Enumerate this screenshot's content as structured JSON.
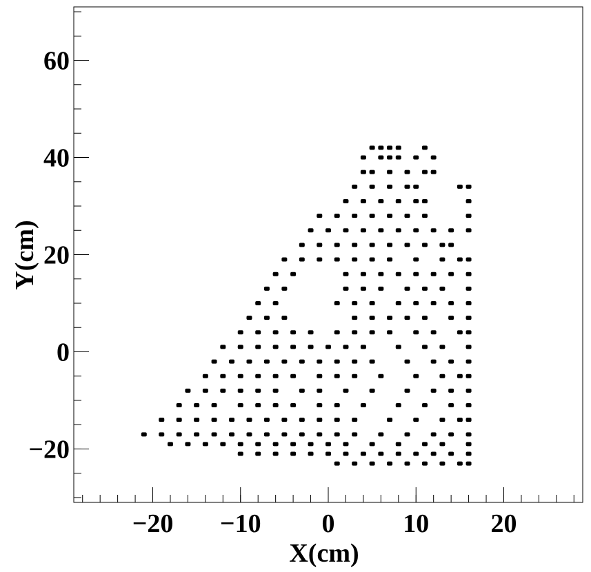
{
  "chart_data": {
    "type": "scatter",
    "xlabel": "X(cm)",
    "ylabel": "Y(cm)",
    "color": "#000000",
    "xlim": [
      -29,
      29
    ],
    "ylim": [
      -31,
      71
    ],
    "xticks": [
      {
        "value": -20,
        "label": "−20"
      },
      {
        "value": -10,
        "label": "−10"
      },
      0,
      10,
      20
    ],
    "yticks": [
      {
        "value": -20,
        "label": "−20"
      },
      0,
      20,
      40,
      60
    ],
    "xminorticks": [
      -28,
      -26,
      -24,
      -22,
      -20,
      -18,
      -16,
      -14,
      -12,
      -10,
      -8,
      -6,
      -4,
      -2,
      0,
      2,
      4,
      6,
      8,
      10,
      12,
      14,
      16,
      18,
      20,
      22,
      24,
      26,
      28
    ],
    "yminorticks": [
      -30,
      -25,
      -20,
      -15,
      -10,
      -5,
      0,
      5,
      10,
      15,
      20,
      25,
      30,
      35,
      40,
      45,
      50,
      55,
      60,
      65,
      70
    ],
    "x": [
      1,
      3,
      5,
      7,
      9,
      11,
      13,
      15,
      16,
      -10,
      -8,
      -6,
      -4,
      -2,
      0,
      2,
      4,
      6,
      8,
      10,
      12,
      14,
      16,
      -18,
      -16,
      -14,
      -12,
      -10,
      -8,
      -6,
      -4,
      -2,
      0,
      2,
      5,
      8,
      11,
      13,
      16,
      -21,
      -19,
      -17,
      -15,
      -13,
      -11,
      -9,
      -7,
      -5,
      -3,
      -1,
      1,
      3,
      6,
      9,
      12,
      14,
      16,
      -19,
      -17,
      -15,
      -13,
      -11,
      -9,
      -7,
      -5,
      -3,
      -1,
      1,
      3,
      7,
      10,
      13,
      15,
      16,
      -17,
      -15,
      -13,
      -10,
      -8,
      -6,
      -4,
      -1,
      1,
      4,
      8,
      11,
      14,
      16,
      -16,
      -14,
      -12,
      -10,
      -8,
      -6,
      -3,
      -1,
      2,
      5,
      9,
      12,
      14,
      16,
      -14,
      -12,
      -10,
      -8,
      -6,
      -4,
      -1,
      1,
      3,
      6,
      10,
      13,
      15,
      16,
      -13,
      -11,
      -9,
      -7,
      -5,
      -3,
      -1,
      1,
      3,
      5,
      9,
      12,
      14,
      16,
      -12,
      -10,
      -8,
      -6,
      -4,
      -2,
      0,
      2,
      4,
      8,
      11,
      13,
      16,
      -10,
      -8,
      -6,
      -4,
      -2,
      1,
      3,
      5,
      7,
      10,
      12,
      15,
      16,
      -9,
      -7,
      -5,
      3,
      5,
      7,
      9,
      11,
      14,
      16,
      -8,
      -6,
      1,
      3,
      5,
      8,
      10,
      12,
      14,
      16,
      -7,
      -5,
      2,
      4,
      6,
      9,
      11,
      13,
      16,
      -6,
      -4,
      2,
      4,
      6,
      8,
      10,
      12,
      14,
      16,
      -5,
      -3,
      -1,
      1,
      3,
      5,
      7,
      10,
      13,
      15,
      16,
      -3,
      -1,
      1,
      3,
      5,
      7,
      9,
      11,
      13,
      14,
      -2,
      0,
      2,
      4,
      6,
      8,
      10,
      12,
      14,
      16,
      -1,
      1,
      3,
      5,
      7,
      9,
      11,
      16,
      2,
      4,
      6,
      8,
      10,
      11,
      16,
      3,
      5,
      7,
      9,
      10,
      15,
      16,
      4,
      5,
      7,
      9,
      11,
      12,
      4,
      6,
      7,
      8,
      10,
      12,
      5,
      6,
      7,
      8,
      11
    ],
    "values": [
      -23,
      -23,
      -23,
      -23,
      -23,
      -23,
      -23,
      -23,
      -23,
      -21,
      -21,
      -21,
      -21,
      -21,
      -21,
      -21,
      -21,
      -21,
      -21,
      -21,
      -21,
      -21,
      -21,
      -19,
      -19,
      -19,
      -19,
      -19,
      -19,
      -19,
      -19,
      -19,
      -19,
      -19,
      -19,
      -19,
      -19,
      -19,
      -19,
      -17,
      -17,
      -17,
      -17,
      -17,
      -17,
      -17,
      -17,
      -17,
      -17,
      -17,
      -17,
      -17,
      -17,
      -17,
      -17,
      -17,
      -17,
      -14,
      -14,
      -14,
      -14,
      -14,
      -14,
      -14,
      -14,
      -14,
      -14,
      -14,
      -14,
      -14,
      -14,
      -14,
      -14,
      -14,
      -11,
      -11,
      -11,
      -11,
      -11,
      -11,
      -11,
      -11,
      -11,
      -11,
      -11,
      -11,
      -11,
      -11,
      -8,
      -8,
      -8,
      -8,
      -8,
      -8,
      -8,
      -8,
      -8,
      -8,
      -8,
      -8,
      -8,
      -8,
      -5,
      -5,
      -5,
      -5,
      -5,
      -5,
      -5,
      -5,
      -5,
      -5,
      -5,
      -5,
      -5,
      -5,
      -2,
      -2,
      -2,
      -2,
      -2,
      -2,
      -2,
      -2,
      -2,
      -2,
      -2,
      -2,
      -2,
      -2,
      1,
      1,
      1,
      1,
      1,
      1,
      1,
      1,
      1,
      1,
      1,
      1,
      1,
      4,
      4,
      4,
      4,
      4,
      4,
      4,
      4,
      4,
      4,
      4,
      4,
      4,
      7,
      7,
      7,
      7,
      7,
      7,
      7,
      7,
      7,
      7,
      10,
      10,
      10,
      10,
      10,
      10,
      10,
      10,
      10,
      10,
      13,
      13,
      13,
      13,
      13,
      13,
      13,
      13,
      13,
      16,
      16,
      16,
      16,
      16,
      16,
      16,
      16,
      16,
      16,
      19,
      19,
      19,
      19,
      19,
      19,
      19,
      19,
      19,
      19,
      19,
      22,
      22,
      22,
      22,
      22,
      22,
      22,
      22,
      22,
      22,
      25,
      25,
      25,
      25,
      25,
      25,
      25,
      25,
      25,
      25,
      28,
      28,
      28,
      28,
      28,
      28,
      28,
      28,
      31,
      31,
      31,
      31,
      31,
      31,
      31,
      34,
      34,
      34,
      34,
      34,
      34,
      34,
      37,
      37,
      37,
      37,
      37,
      37,
      40,
      40,
      40,
      40,
      40,
      40,
      42,
      42,
      42,
      42,
      42
    ]
  }
}
